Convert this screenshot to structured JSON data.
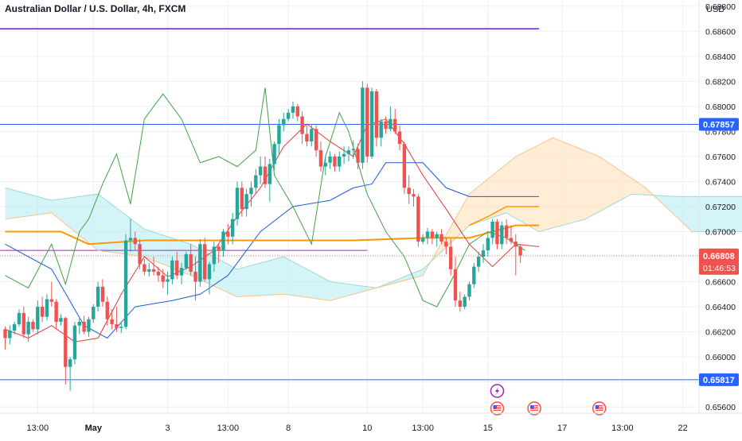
{
  "header": {
    "symbol_title": "Australian Dollar / U.S. Dollar, 4h, FXCM",
    "currency": "USD"
  },
  "colors": {
    "up": "#26a69a",
    "down": "#ef5350",
    "horizontal_line": "#2962ff",
    "resistance_top": "#6a1bd1",
    "kumo_bull": "#b2ebf2",
    "kumo_bear": "#ffe0b2",
    "kijun": "#ff9800",
    "tenkan": "#e53935",
    "chikou": "#43a047",
    "baseline_blue": "#1e5bd8",
    "violet_line": "#9c27b0",
    "grid": "#eef0f3",
    "axis_text": "#131722",
    "badge_bg_blue": "#2962ff",
    "badge_bg_red": "#ef5350"
  },
  "chart_data": {
    "type": "candlestick",
    "title": "Australian Dollar / U.S. Dollar, 4h, FXCM",
    "y_unit": "USD",
    "ylim": [
      0.6555,
      0.6885
    ],
    "y_ticks": [
      "0.68800",
      "0.68600",
      "0.68400",
      "0.68200",
      "0.68000",
      "0.67800",
      "0.67600",
      "0.67400",
      "0.67200",
      "0.67000",
      "0.66800",
      "0.66600",
      "0.66400",
      "0.66200",
      "0.66000",
      "0.65800",
      "0.65600"
    ],
    "x_ticks": [
      {
        "label": "13:00",
        "bar": 7
      },
      {
        "label": "May",
        "bar": 19
      },
      {
        "label": "3",
        "bar": 35
      },
      {
        "label": "13:00",
        "bar": 48
      },
      {
        "label": "8",
        "bar": 61
      },
      {
        "label": "10",
        "bar": 78
      },
      {
        "label": "13:00",
        "bar": 90
      },
      {
        "label": "15",
        "bar": 104
      },
      {
        "label": "17",
        "bar": 120
      },
      {
        "label": "13:00",
        "bar": 133
      },
      {
        "label": "22",
        "bar": 146
      }
    ],
    "last_bar_index": 115,
    "candles": [
      [
        0.6622,
        0.6624,
        0.6606,
        0.6615
      ],
      [
        0.6615,
        0.6625,
        0.661,
        0.6621
      ],
      [
        0.6621,
        0.6628,
        0.6618,
        0.6626
      ],
      [
        0.6626,
        0.6638,
        0.6624,
        0.6635
      ],
      [
        0.6635,
        0.664,
        0.6615,
        0.6618
      ],
      [
        0.6618,
        0.6632,
        0.6612,
        0.6628
      ],
      [
        0.6628,
        0.663,
        0.662,
        0.6622
      ],
      [
        0.6622,
        0.6645,
        0.6618,
        0.664
      ],
      [
        0.664,
        0.6648,
        0.6628,
        0.6632
      ],
      [
        0.6632,
        0.665,
        0.6629,
        0.6646
      ],
      [
        0.6646,
        0.666,
        0.664,
        0.6644
      ],
      [
        0.6644,
        0.6646,
        0.6622,
        0.6628
      ],
      [
        0.6628,
        0.6634,
        0.6625,
        0.6631
      ],
      [
        0.6631,
        0.6632,
        0.6578,
        0.6592
      ],
      [
        0.6592,
        0.66,
        0.6573,
        0.6598
      ],
      [
        0.6598,
        0.6628,
        0.6594,
        0.6625
      ],
      [
        0.6625,
        0.6632,
        0.6618,
        0.6628
      ],
      [
        0.6628,
        0.6633,
        0.6618,
        0.662
      ],
      [
        0.662,
        0.6632,
        0.6616,
        0.663
      ],
      [
        0.663,
        0.6642,
        0.6627,
        0.664
      ],
      [
        0.664,
        0.666,
        0.6636,
        0.6656
      ],
      [
        0.6656,
        0.6662,
        0.664,
        0.6644
      ],
      [
        0.6644,
        0.6648,
        0.6625,
        0.663
      ],
      [
        0.663,
        0.6638,
        0.6622,
        0.6626
      ],
      [
        0.6626,
        0.664,
        0.662,
        0.6623
      ],
      [
        0.6623,
        0.6628,
        0.6619,
        0.6624
      ],
      [
        0.6624,
        0.6698,
        0.6622,
        0.6693
      ],
      [
        0.6693,
        0.671,
        0.6684,
        0.6695
      ],
      [
        0.6695,
        0.67,
        0.6685,
        0.669
      ],
      [
        0.669,
        0.6694,
        0.667,
        0.6674
      ],
      [
        0.6674,
        0.6678,
        0.6665,
        0.6668
      ],
      [
        0.6668,
        0.6675,
        0.6664,
        0.667
      ],
      [
        0.667,
        0.668,
        0.6665,
        0.6668
      ],
      [
        0.6668,
        0.6672,
        0.666,
        0.6665
      ],
      [
        0.6665,
        0.667,
        0.6655,
        0.666
      ],
      [
        0.666,
        0.6668,
        0.665,
        0.6662
      ],
      [
        0.6662,
        0.668,
        0.6658,
        0.6677
      ],
      [
        0.6677,
        0.6684,
        0.6662,
        0.6665
      ],
      [
        0.6665,
        0.6675,
        0.6658,
        0.6671
      ],
      [
        0.6671,
        0.6684,
        0.667,
        0.6682
      ],
      [
        0.6682,
        0.669,
        0.6665,
        0.6668
      ],
      [
        0.6668,
        0.668,
        0.6645,
        0.666
      ],
      [
        0.666,
        0.6694,
        0.6656,
        0.669
      ],
      [
        0.669,
        0.6695,
        0.666,
        0.6662
      ],
      [
        0.6662,
        0.6676,
        0.665,
        0.6674
      ],
      [
        0.6674,
        0.6692,
        0.6668,
        0.6688
      ],
      [
        0.6688,
        0.669,
        0.6675,
        0.6685
      ],
      [
        0.6685,
        0.6702,
        0.668,
        0.67
      ],
      [
        0.67,
        0.6706,
        0.669,
        0.6696
      ],
      [
        0.6696,
        0.6715,
        0.669,
        0.671
      ],
      [
        0.671,
        0.674,
        0.6705,
        0.6735
      ],
      [
        0.6735,
        0.674,
        0.6712,
        0.6718
      ],
      [
        0.6718,
        0.6734,
        0.6712,
        0.673
      ],
      [
        0.673,
        0.674,
        0.672,
        0.6735
      ],
      [
        0.6735,
        0.675,
        0.673,
        0.6745
      ],
      [
        0.6745,
        0.676,
        0.6738,
        0.6752
      ],
      [
        0.6752,
        0.676,
        0.6735,
        0.6738
      ],
      [
        0.6738,
        0.6758,
        0.6724,
        0.6754
      ],
      [
        0.6754,
        0.6772,
        0.6749,
        0.677
      ],
      [
        0.677,
        0.679,
        0.6762,
        0.6785
      ],
      [
        0.6785,
        0.6795,
        0.678,
        0.679
      ],
      [
        0.679,
        0.6798,
        0.6788,
        0.6795
      ],
      [
        0.6795,
        0.6804,
        0.679,
        0.68
      ],
      [
        0.68,
        0.6802,
        0.6788,
        0.6792
      ],
      [
        0.6792,
        0.6796,
        0.677,
        0.6778
      ],
      [
        0.6778,
        0.6785,
        0.6768,
        0.6772
      ],
      [
        0.6772,
        0.6786,
        0.6768,
        0.6782
      ],
      [
        0.6782,
        0.6785,
        0.676,
        0.6765
      ],
      [
        0.6765,
        0.6772,
        0.6748,
        0.6752
      ],
      [
        0.6752,
        0.676,
        0.6745,
        0.6755
      ],
      [
        0.6755,
        0.6764,
        0.675,
        0.676
      ],
      [
        0.676,
        0.6762,
        0.6748,
        0.6752
      ],
      [
        0.6752,
        0.6764,
        0.6748,
        0.676
      ],
      [
        0.676,
        0.6768,
        0.6754,
        0.6762
      ],
      [
        0.6762,
        0.6768,
        0.6756,
        0.6765
      ],
      [
        0.6765,
        0.6773,
        0.6758,
        0.6766
      ],
      [
        0.6766,
        0.677,
        0.675,
        0.6755
      ],
      [
        0.6755,
        0.682,
        0.675,
        0.6815
      ],
      [
        0.6815,
        0.6818,
        0.6755,
        0.676
      ],
      [
        0.676,
        0.6815,
        0.6758,
        0.6812
      ],
      [
        0.6812,
        0.6814,
        0.6768,
        0.6775
      ],
      [
        0.6775,
        0.679,
        0.6768,
        0.6788
      ],
      [
        0.6788,
        0.6792,
        0.6778,
        0.6782
      ],
      [
        0.6782,
        0.68,
        0.678,
        0.679
      ],
      [
        0.679,
        0.6798,
        0.6778,
        0.678
      ],
      [
        0.678,
        0.6785,
        0.6765,
        0.677
      ],
      [
        0.677,
        0.6772,
        0.673,
        0.6735
      ],
      [
        0.6735,
        0.6745,
        0.6722,
        0.673
      ],
      [
        0.673,
        0.6734,
        0.672,
        0.6728
      ],
      [
        0.6728,
        0.673,
        0.6688,
        0.6692
      ],
      [
        0.6692,
        0.6698,
        0.669,
        0.6695
      ],
      [
        0.6695,
        0.6703,
        0.669,
        0.67
      ],
      [
        0.67,
        0.6702,
        0.669,
        0.6695
      ],
      [
        0.6695,
        0.67,
        0.6688,
        0.6698
      ],
      [
        0.6698,
        0.6702,
        0.669,
        0.6692
      ],
      [
        0.6692,
        0.6695,
        0.6682,
        0.6688
      ],
      [
        0.6688,
        0.6694,
        0.6665,
        0.667
      ],
      [
        0.667,
        0.668,
        0.664,
        0.6645
      ],
      [
        0.6645,
        0.6652,
        0.6636,
        0.664
      ],
      [
        0.664,
        0.665,
        0.6638,
        0.6648
      ],
      [
        0.6648,
        0.666,
        0.6645,
        0.6658
      ],
      [
        0.6658,
        0.6675,
        0.6655,
        0.6672
      ],
      [
        0.6672,
        0.6684,
        0.6668,
        0.668
      ],
      [
        0.668,
        0.669,
        0.6675,
        0.6685
      ],
      [
        0.6685,
        0.6698,
        0.668,
        0.6695
      ],
      [
        0.6695,
        0.671,
        0.669,
        0.6708
      ],
      [
        0.6708,
        0.671,
        0.6686,
        0.669
      ],
      [
        0.669,
        0.6708,
        0.6686,
        0.6705
      ],
      [
        0.6705,
        0.671,
        0.669,
        0.6695
      ],
      [
        0.6695,
        0.6705,
        0.669,
        0.6692
      ],
      [
        0.6692,
        0.6698,
        0.6665,
        0.6688
      ],
      [
        0.6688,
        0.669,
        0.6675,
        0.6681
      ]
    ],
    "horizontal_levels": [
      {
        "name": "resistance-top",
        "value": 0.6862,
        "label": "",
        "color_key": "resistance_top",
        "to_bar": 115
      },
      {
        "name": "resistance-0.67857",
        "value": 0.67857,
        "label": "0.67857",
        "color_key": "horizontal_line",
        "to_bar": 160
      },
      {
        "name": "support-0.65817",
        "value": 0.65817,
        "label": "0.65817",
        "color_key": "horizontal_line",
        "to_bar": 160
      },
      {
        "name": "violet-level",
        "value": 0.6685,
        "label": "",
        "color_key": "violet_line",
        "to_bar": 78
      }
    ],
    "last_price": {
      "value": 0.66808,
      "label": "0.66808",
      "countdown": "01:46:53"
    },
    "ichimoku": {
      "tenkan": [
        [
          0,
          0.6622
        ],
        [
          5,
          0.6615
        ],
        [
          10,
          0.6625
        ],
        [
          15,
          0.6612
        ],
        [
          20,
          0.6615
        ],
        [
          25,
          0.665
        ],
        [
          30,
          0.668
        ],
        [
          35,
          0.6664
        ],
        [
          40,
          0.6672
        ],
        [
          45,
          0.6685
        ],
        [
          50,
          0.6712
        ],
        [
          55,
          0.6735
        ],
        [
          60,
          0.6768
        ],
        [
          65,
          0.6786
        ],
        [
          70,
          0.6772
        ],
        [
          75,
          0.676
        ],
        [
          78,
          0.6785
        ],
        [
          82,
          0.679
        ],
        [
          86,
          0.677
        ],
        [
          90,
          0.6745
        ],
        [
          95,
          0.6718
        ],
        [
          100,
          0.669
        ],
        [
          105,
          0.6672
        ],
        [
          110,
          0.669
        ],
        [
          115,
          0.6688
        ]
      ],
      "kijun": [
        [
          0,
          0.67
        ],
        [
          12,
          0.67
        ],
        [
          18,
          0.669
        ],
        [
          30,
          0.6693
        ],
        [
          45,
          0.6693
        ],
        [
          60,
          0.6693
        ],
        [
          75,
          0.6693
        ],
        [
          90,
          0.6695
        ],
        [
          100,
          0.6695
        ],
        [
          105,
          0.67
        ],
        [
          110,
          0.6705
        ],
        [
          115,
          0.6705
        ]
      ],
      "kijun_forward": [
        [
          100,
          0.6705
        ],
        [
          104,
          0.6712
        ],
        [
          108,
          0.672
        ],
        [
          115,
          0.672
        ]
      ],
      "blue_line": [
        [
          0,
          0.669
        ],
        [
          10,
          0.667
        ],
        [
          17,
          0.6625
        ],
        [
          22,
          0.6615
        ],
        [
          28,
          0.664
        ],
        [
          36,
          0.6645
        ],
        [
          42,
          0.665
        ],
        [
          48,
          0.6665
        ],
        [
          55,
          0.67
        ],
        [
          62,
          0.672
        ],
        [
          70,
          0.6725
        ],
        [
          75,
          0.6735
        ],
        [
          79,
          0.6738
        ],
        [
          82,
          0.6755
        ],
        [
          90,
          0.6755
        ],
        [
          95,
          0.6735
        ],
        [
          100,
          0.6728
        ],
        [
          115,
          0.6728
        ]
      ],
      "chikou": [
        [
          0,
          0.6665
        ],
        [
          5,
          0.6655
        ],
        [
          10,
          0.669
        ],
        [
          13,
          0.6658
        ],
        [
          16,
          0.67
        ],
        [
          18,
          0.671
        ],
        [
          21,
          0.6738
        ],
        [
          24,
          0.6762
        ],
        [
          27,
          0.6722
        ],
        [
          30,
          0.679
        ],
        [
          34,
          0.681
        ],
        [
          38,
          0.679
        ],
        [
          42,
          0.6755
        ],
        [
          46,
          0.676
        ],
        [
          50,
          0.6752
        ],
        [
          54,
          0.6765
        ],
        [
          56,
          0.6815
        ],
        [
          58,
          0.6745
        ],
        [
          62,
          0.672
        ],
        [
          66,
          0.669
        ],
        [
          69,
          0.676
        ],
        [
          72,
          0.6795
        ],
        [
          74,
          0.678
        ],
        [
          78,
          0.673
        ],
        [
          82,
          0.67
        ],
        [
          86,
          0.668
        ],
        [
          90,
          0.6645
        ],
        [
          93,
          0.664
        ],
        [
          96,
          0.666
        ],
        [
          100,
          0.669
        ],
        [
          104,
          0.67
        ],
        [
          108,
          0.6695
        ],
        [
          112,
          0.6685
        ]
      ],
      "cloud_a": [
        [
          0,
          0.6735
        ],
        [
          10,
          0.6725
        ],
        [
          20,
          0.673
        ],
        [
          30,
          0.6702
        ],
        [
          40,
          0.669
        ],
        [
          50,
          0.667
        ],
        [
          60,
          0.668
        ],
        [
          70,
          0.666
        ],
        [
          80,
          0.6655
        ],
        [
          90,
          0.667
        ],
        [
          100,
          0.6705
        ],
        [
          108,
          0.6715
        ],
        [
          115,
          0.67
        ],
        [
          125,
          0.671
        ],
        [
          135,
          0.673
        ],
        [
          145,
          0.6728
        ],
        [
          160,
          0.6728
        ]
      ],
      "cloud_b": [
        [
          0,
          0.671
        ],
        [
          10,
          0.6715
        ],
        [
          20,
          0.6685
        ],
        [
          30,
          0.668
        ],
        [
          40,
          0.6665
        ],
        [
          50,
          0.6648
        ],
        [
          60,
          0.665
        ],
        [
          70,
          0.6645
        ],
        [
          80,
          0.6655
        ],
        [
          90,
          0.6665
        ],
        [
          100,
          0.673
        ],
        [
          105,
          0.6745
        ],
        [
          110,
          0.676
        ],
        [
          118,
          0.6775
        ],
        [
          128,
          0.676
        ],
        [
          138,
          0.6735
        ],
        [
          148,
          0.67
        ],
        [
          160,
          0.67
        ]
      ]
    },
    "events": [
      {
        "bar": 106,
        "icon": "lightning",
        "row": 1
      },
      {
        "bar": 106,
        "icon": "flag-us",
        "row": 2
      },
      {
        "bar": 114,
        "icon": "flag-us",
        "row": 2
      },
      {
        "bar": 128,
        "icon": "flag-us",
        "row": 2
      }
    ]
  }
}
